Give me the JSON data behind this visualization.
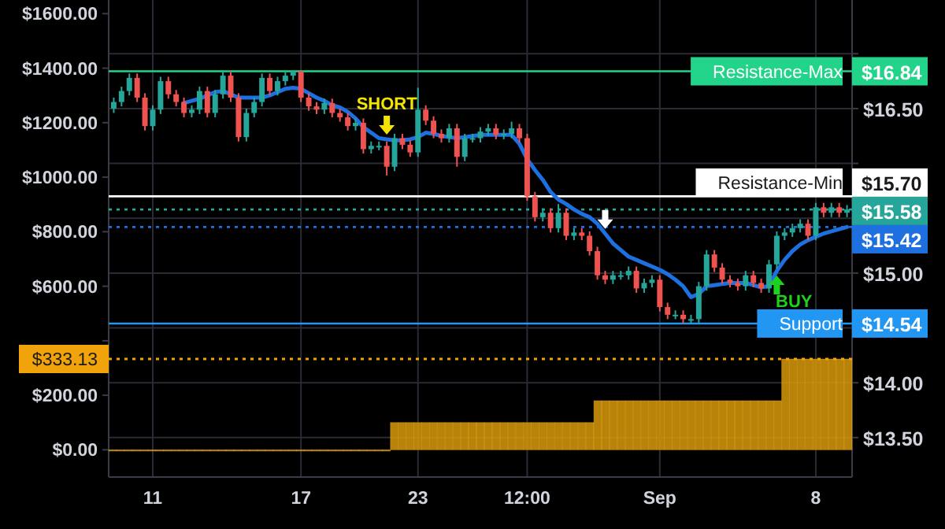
{
  "chart_data": {
    "type": "candlestick",
    "categories": [
      null,
      null,
      null,
      null,
      null,
      "11",
      null,
      null,
      null,
      null,
      null,
      null,
      null,
      null,
      null,
      null,
      null,
      null,
      null,
      null,
      null,
      null,
      null,
      null,
      "17",
      null,
      null,
      null,
      null,
      null,
      null,
      null,
      null,
      null,
      null,
      null,
      null,
      null,
      null,
      "23",
      null,
      null,
      null,
      null,
      null,
      null,
      null,
      null,
      null,
      null,
      null,
      null,
      null,
      "12:00",
      null,
      null,
      null,
      null,
      null,
      null,
      null,
      null,
      null,
      null,
      null,
      null,
      null,
      null,
      null,
      null,
      "Sep",
      null,
      null,
      null,
      null,
      null,
      null,
      null,
      null,
      null,
      null,
      null,
      null,
      null,
      null,
      null,
      null,
      null,
      null,
      null,
      "8",
      null,
      null,
      null,
      null
    ],
    "ylim": [
      -100,
      1650
    ],
    "yticks": [
      {
        "value": 0,
        "label": "$0.00"
      },
      {
        "value": 200,
        "label": "$200.00"
      },
      {
        "value": 400,
        "label": null
      },
      {
        "value": 600,
        "label": "$600.00"
      },
      {
        "value": 800,
        "label": "$800.00"
      },
      {
        "value": 1000,
        "label": "$1000.00"
      },
      {
        "value": 1200,
        "label": "$1200.00"
      },
      {
        "value": 1400,
        "label": "$1400.00"
      },
      {
        "value": 1600,
        "label": "$1600.00"
      }
    ],
    "y2lim": [
      13.14,
      17.49
    ],
    "y2ticks": [
      {
        "value": 13.5,
        "label": "$13.50"
      },
      {
        "value": 14,
        "label": "$14.00"
      },
      {
        "value": 14.5,
        "label": null
      },
      {
        "value": 15,
        "label": "$15.00"
      },
      {
        "value": 15.5,
        "label": null
      },
      {
        "value": 16,
        "label": null
      },
      {
        "value": 16.5,
        "label": "$16.50"
      },
      {
        "value": 17,
        "label": null
      }
    ],
    "grid": true,
    "series": [
      {
        "type": "bar",
        "color": "#d99a0b",
        "values": [
          0,
          0,
          0,
          0,
          0,
          0,
          0,
          0,
          0,
          0,
          0,
          0,
          0,
          0,
          0,
          0,
          0,
          0,
          0,
          0,
          0,
          0,
          0,
          0,
          0,
          0,
          0,
          0,
          0,
          0,
          0,
          0,
          0,
          0,
          0,
          0,
          100,
          100,
          100,
          100,
          100,
          100,
          100,
          100,
          100,
          100,
          100,
          100,
          100,
          100,
          100,
          100,
          100,
          100,
          100,
          100,
          100,
          100,
          100,
          100,
          100,
          100,
          180,
          180,
          180,
          180,
          180,
          180,
          180,
          180,
          180,
          180,
          180,
          180,
          180,
          180,
          180,
          180,
          180,
          180,
          180,
          180,
          180,
          180,
          180,
          180,
          333.13,
          333.13,
          333.13,
          333.13,
          333.13,
          333.13,
          333.13,
          333.13,
          333.13
        ]
      },
      {
        "type": "line",
        "color": "#1e6fe0",
        "axis": "y2",
        "values": [
          null,
          null,
          null,
          null,
          null,
          null,
          null,
          null,
          null,
          16.55,
          16.57,
          16.59,
          16.62,
          16.65,
          16.66,
          16.63,
          16.6,
          16.6,
          16.6,
          16.6,
          16.62,
          16.65,
          16.68,
          16.69,
          16.68,
          16.64,
          16.6,
          16.57,
          16.53,
          16.51,
          16.47,
          16.41,
          16.33,
          16.28,
          16.23,
          16.22,
          16.21,
          16.21,
          16.22,
          16.24,
          16.28,
          16.27,
          16.25,
          16.24,
          16.23,
          16.24,
          16.25,
          16.26,
          16.26,
          16.26,
          16.26,
          16.26,
          16.18,
          16.04,
          15.94,
          15.85,
          15.74,
          15.67,
          15.63,
          15.58,
          15.54,
          15.51,
          15.45,
          15.36,
          15.27,
          15.21,
          15.15,
          15.12,
          15.09,
          15.06,
          15.03,
          14.99,
          14.94,
          14.88,
          14.78,
          14.81,
          14.88,
          14.89,
          14.9,
          14.91,
          14.91,
          14.91,
          14.89,
          14.87,
          14.88,
          15.02,
          15.12,
          15.2,
          15.26,
          15.3,
          15.33,
          15.36,
          15.38,
          15.4,
          15.42
        ]
      },
      {
        "axis": "y2",
        "ohlc": [
          [
            16.5,
            16.6,
            16.46,
            16.56
          ],
          [
            16.56,
            16.7,
            16.52,
            16.66
          ],
          [
            16.66,
            16.82,
            16.62,
            16.78
          ],
          [
            16.78,
            16.82,
            16.56,
            16.6
          ],
          [
            16.6,
            16.64,
            16.3,
            16.34
          ],
          [
            16.34,
            16.53,
            16.3,
            16.49
          ],
          [
            16.49,
            16.79,
            16.45,
            16.75
          ],
          [
            16.75,
            16.79,
            16.59,
            16.63
          ],
          [
            16.63,
            16.67,
            16.52,
            16.56
          ],
          [
            16.56,
            16.6,
            16.42,
            16.46
          ],
          [
            16.46,
            16.53,
            16.42,
            16.49
          ],
          [
            16.49,
            16.7,
            16.45,
            16.66
          ],
          [
            16.66,
            16.7,
            16.42,
            16.46
          ],
          [
            16.46,
            16.67,
            16.42,
            16.63
          ],
          [
            16.63,
            16.84,
            16.59,
            16.8
          ],
          [
            16.8,
            16.84,
            16.56,
            16.6
          ],
          [
            16.6,
            16.64,
            16.2,
            16.24
          ],
          [
            16.24,
            16.5,
            16.2,
            16.46
          ],
          [
            16.46,
            16.6,
            16.42,
            16.56
          ],
          [
            16.56,
            16.82,
            16.52,
            16.78
          ],
          [
            16.78,
            16.82,
            16.62,
            16.66
          ],
          [
            16.66,
            16.79,
            16.62,
            16.75
          ],
          [
            16.75,
            16.84,
            16.71,
            16.8
          ],
          [
            16.8,
            16.84,
            16.76,
            16.84
          ],
          [
            16.84,
            16.84,
            16.56,
            16.6
          ],
          [
            16.6,
            16.64,
            16.48,
            16.52
          ],
          [
            16.52,
            16.56,
            16.45,
            16.49
          ],
          [
            16.49,
            16.59,
            16.45,
            16.55
          ],
          [
            16.55,
            16.59,
            16.42,
            16.46
          ],
          [
            16.46,
            16.5,
            16.38,
            16.42
          ],
          [
            16.42,
            16.46,
            16.3,
            16.34
          ],
          [
            16.34,
            16.41,
            16.3,
            16.37
          ],
          [
            16.37,
            16.41,
            16.09,
            16.13
          ],
          [
            16.13,
            16.2,
            16.09,
            16.16
          ],
          [
            16.16,
            16.2,
            16.12,
            16.16
          ],
          [
            16.16,
            16.2,
            15.89,
            15.97
          ],
          [
            15.97,
            16.27,
            15.93,
            16.23
          ],
          [
            16.23,
            16.27,
            16.13,
            16.17
          ],
          [
            16.17,
            16.21,
            16.06,
            16.1
          ],
          [
            16.1,
            16.69,
            16.06,
            16.49
          ],
          [
            16.49,
            16.53,
            16.35,
            16.39
          ],
          [
            16.39,
            16.43,
            16.23,
            16.27
          ],
          [
            16.27,
            16.31,
            16.19,
            16.23
          ],
          [
            16.23,
            16.36,
            16.19,
            16.32
          ],
          [
            16.32,
            16.36,
            15.97,
            16.06
          ],
          [
            16.06,
            16.27,
            16.02,
            16.23
          ],
          [
            16.23,
            16.27,
            16.19,
            16.23
          ],
          [
            16.23,
            16.33,
            16.19,
            16.29
          ],
          [
            16.29,
            16.36,
            16.25,
            16.32
          ],
          [
            16.32,
            16.36,
            16.22,
            16.26
          ],
          [
            16.26,
            16.31,
            16.22,
            16.27
          ],
          [
            16.27,
            16.38,
            16.23,
            16.32
          ],
          [
            16.32,
            16.36,
            16.19,
            16.23
          ],
          [
            16.23,
            16.27,
            15.66,
            15.7
          ],
          [
            15.7,
            15.74,
            15.47,
            15.51
          ],
          [
            15.51,
            15.59,
            15.47,
            15.55
          ],
          [
            15.55,
            15.59,
            15.37,
            15.41
          ],
          [
            15.41,
            15.63,
            15.37,
            15.55
          ],
          [
            15.55,
            15.59,
            15.3,
            15.34
          ],
          [
            15.34,
            15.41,
            15.3,
            15.37
          ],
          [
            15.37,
            15.41,
            15.3,
            15.34
          ],
          [
            15.34,
            15.38,
            15.16,
            15.2
          ],
          [
            15.2,
            15.24,
            14.94,
            14.98
          ],
          [
            14.98,
            15.02,
            14.9,
            14.94
          ],
          [
            14.94,
            15.02,
            14.9,
            14.98
          ],
          [
            14.98,
            15.02,
            14.94,
            14.98
          ],
          [
            14.98,
            15.06,
            14.94,
            15.02
          ],
          [
            15.02,
            15.06,
            14.82,
            14.86
          ],
          [
            14.86,
            14.95,
            14.82,
            14.91
          ],
          [
            14.91,
            14.98,
            14.87,
            14.94
          ],
          [
            14.94,
            14.98,
            14.65,
            14.69
          ],
          [
            14.69,
            14.73,
            14.58,
            14.62
          ],
          [
            14.62,
            14.66,
            14.58,
            14.62
          ],
          [
            14.62,
            14.66,
            14.54,
            14.58
          ],
          [
            14.58,
            14.62,
            14.54,
            14.58
          ],
          [
            14.58,
            14.92,
            14.54,
            14.88
          ],
          [
            14.88,
            15.21,
            14.84,
            15.17
          ],
          [
            15.17,
            15.21,
            15.01,
            15.05
          ],
          [
            15.05,
            15.09,
            14.9,
            14.94
          ],
          [
            14.94,
            14.98,
            14.87,
            14.91
          ],
          [
            14.91,
            14.95,
            14.84,
            14.88
          ],
          [
            14.88,
            15.02,
            14.84,
            14.98
          ],
          [
            14.98,
            15.02,
            14.87,
            14.91
          ],
          [
            14.91,
            14.95,
            14.82,
            14.86
          ],
          [
            14.86,
            15.12,
            14.82,
            15.08
          ],
          [
            15.08,
            15.38,
            15.04,
            15.34
          ],
          [
            15.34,
            15.41,
            15.3,
            15.37
          ],
          [
            15.37,
            15.45,
            15.33,
            15.41
          ],
          [
            15.41,
            15.49,
            15.37,
            15.45
          ],
          [
            15.45,
            15.49,
            15.3,
            15.34
          ],
          [
            15.34,
            15.64,
            15.3,
            15.6
          ],
          [
            15.6,
            15.64,
            15.51,
            15.55
          ],
          [
            15.55,
            15.64,
            15.51,
            15.6
          ],
          [
            15.6,
            15.64,
            15.51,
            15.55
          ],
          [
            15.55,
            15.62,
            15.51,
            15.58
          ]
        ],
        "colors": [
          "#26a69a",
          "#26a69a",
          "#26a69a",
          "#ef5350",
          "#ef5350",
          "#26a69a",
          "#26a69a",
          "#ef5350",
          "#ef5350",
          "#ef5350",
          "#26a69a",
          "#26a69a",
          "#ef5350",
          "#26a69a",
          "#26a69a",
          "#ef5350",
          "#ef5350",
          "#26a69a",
          "#26a69a",
          "#26a69a",
          "#ef5350",
          "#26a69a",
          "#26a69a",
          "#26a69a",
          "#ef5350",
          "#ef5350",
          "#ef5350",
          "#26a69a",
          "#ef5350",
          "#ef5350",
          "#ef5350",
          "#26a69a",
          "#ef5350",
          "#26a69a",
          "#26a69a",
          "#ef5350",
          "#26a69a",
          "#ef5350",
          "#ef5350",
          "#26a69a",
          "#ef5350",
          "#ef5350",
          "#ef5350",
          "#26a69a",
          "#ef5350",
          "#26a69a",
          "#26a69a",
          "#26a69a",
          "#26a69a",
          "#ef5350",
          "#26a69a",
          "#26a69a",
          "#ef5350",
          "#ef5350",
          "#ef5350",
          "#26a69a",
          "#ef5350",
          "#26a69a",
          "#ef5350",
          "#26a69a",
          "#ef5350",
          "#ef5350",
          "#ef5350",
          "#ef5350",
          "#26a69a",
          "#26a69a",
          "#26a69a",
          "#ef5350",
          "#26a69a",
          "#26a69a",
          "#ef5350",
          "#ef5350",
          "#26a69a",
          "#ef5350",
          "#26a69a",
          "#26a69a",
          "#26a69a",
          "#ef5350",
          "#ef5350",
          "#ef5350",
          "#ef5350",
          "#26a69a",
          "#ef5350",
          "#ef5350",
          "#26a69a",
          "#26a69a",
          "#26a69a",
          "#26a69a",
          "#26a69a",
          "#ef5350",
          "#26a69a",
          "#ef5350",
          "#26a69a",
          "#ef5350",
          "#26a69a"
        ]
      }
    ],
    "ref_lines": [
      {
        "axis": "y2",
        "value": 16.84,
        "label": "Resistance-Max",
        "color": "#22d38a",
        "line_style": "solid"
      },
      {
        "axis": "y2",
        "value": 15.7,
        "label": "Resistance-Min",
        "color": "#ffffff",
        "line_style": "solid"
      },
      {
        "axis": "y2",
        "value": 15.58,
        "color": "#26a69a",
        "line_style": "dotted"
      },
      {
        "axis": "y2",
        "value": 15.42,
        "color": "#1e6fe0",
        "line_style": "dotted"
      },
      {
        "axis": "y2",
        "value": 14.54,
        "label": "Support",
        "color": "#2196f3",
        "line_style": "solid"
      },
      {
        "axis": "y",
        "value": 333.13,
        "label": "$333.13",
        "color": "#f0a30a",
        "line_style": "dotted"
      }
    ],
    "annotations": [
      "SHORT",
      "BUY",
      "$16.84",
      "$15.70",
      "$15.58",
      "$15.42",
      "$14.54"
    ]
  }
}
